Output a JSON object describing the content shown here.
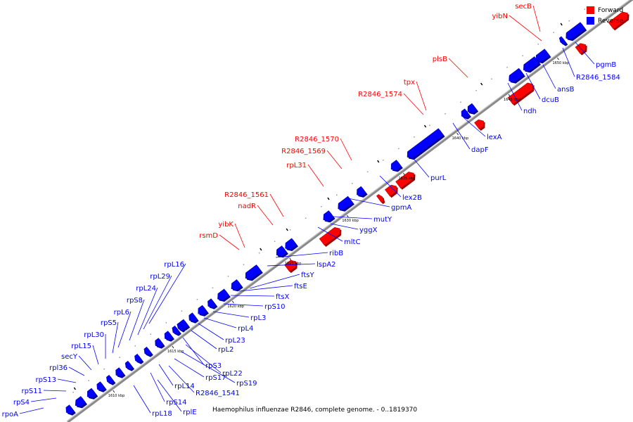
{
  "legend": {
    "forward_label": "Forward",
    "reverse_label": "Reverse",
    "forward_color": "#ff0000",
    "reverse_color": "#0000ff"
  },
  "caption": "Haemophilus influenzae R2846, complete genome. - 0..1819370",
  "scale_ticks": [
    "1610 kbp",
    "1615 kbp",
    "1620 kbp",
    "1625 kbp",
    "1630 kbp",
    "1635 kbp",
    "1640 kbp",
    "1645 kbp",
    "1650 kbp"
  ],
  "forward_genes": [
    "secB",
    "yibN",
    "plsB",
    "tpx",
    "R2846_1574",
    "R2846_1570",
    "R2846_1569",
    "rpL31",
    "R2846_1561",
    "nadR",
    "yibK",
    "rsmD"
  ],
  "reverse_genes_right": [
    "pgmB",
    "R2846_1584",
    "ansB",
    "dcuB",
    "ndh",
    "lexA",
    "dapF",
    "purL",
    "lex2B",
    "gpmA",
    "mutY",
    "yggX",
    "mltC",
    "ribB",
    "lspA2",
    "ftsY",
    "ftsE",
    "ftsX",
    "rpS10",
    "rpL3",
    "rpL4",
    "rpL23",
    "rpL2",
    "rpS3",
    "rpL22",
    "rpS19",
    "rpS17",
    "R2846_1541",
    "rpL14",
    "rpS14",
    "rplE",
    "rpL18"
  ],
  "reverse_genes_left": [
    "rpL16",
    "rpL29",
    "rpL24",
    "rpS8",
    "rpL6",
    "rpS5",
    "rpL30",
    "rpL15",
    "secY",
    "rpl36",
    "rpS13",
    "rpS11",
    "rpS4",
    "rpoA"
  ]
}
